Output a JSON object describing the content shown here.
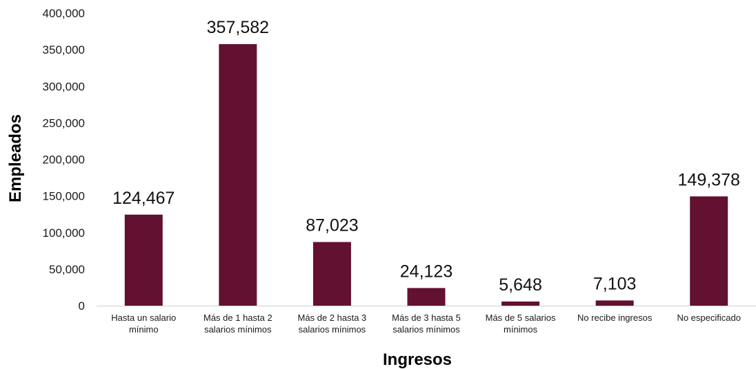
{
  "chart_data": {
    "type": "bar",
    "title": "",
    "xlabel": "Ingresos",
    "ylabel": "Empleados",
    "ylim": [
      0,
      400000
    ],
    "y_ticks": [
      "0",
      "50,000",
      "100,000",
      "150,000",
      "200,000",
      "250,000",
      "300,000",
      "350,000",
      "400,000"
    ],
    "categories": [
      [
        "Hasta un salario",
        "mínimo"
      ],
      [
        "Más de 1 hasta 2",
        "salarios mínimos"
      ],
      [
        "Más de 2 hasta 3",
        "salarios mínimos"
      ],
      [
        "Más de 3 hasta 5",
        "salarios mínimos"
      ],
      [
        "Más de 5 salarios",
        "mínimos"
      ],
      [
        "No recibe ingresos"
      ],
      [
        "No especificado"
      ]
    ],
    "values": [
      124467,
      357582,
      87023,
      24123,
      5648,
      7103,
      149378
    ],
    "data_labels": [
      "124,467",
      "357,582",
      "87,023",
      "24,123",
      "5,648",
      "7,103",
      "149,378"
    ],
    "bar_color": "#631131",
    "grid": false,
    "legend": "none"
  }
}
